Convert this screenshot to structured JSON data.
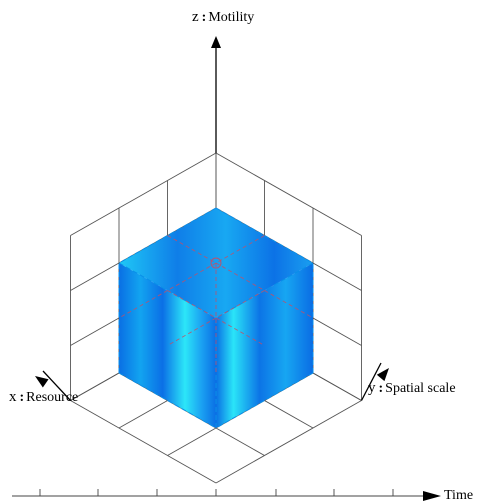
{
  "axes": {
    "z": {
      "var": "z",
      "name": "Motility"
    },
    "x": {
      "var": "x",
      "name": "Resource"
    },
    "y": {
      "var": "y",
      "name": "Spatial scale"
    },
    "time": {
      "name": "Time"
    }
  },
  "colors": {
    "grid": "#555555",
    "cube_edge": "#0a8fe8",
    "cube_light": "#2ce6f8",
    "cube_mid": "#1aa8f2",
    "cube_dark": "#0a6fe4",
    "hidden_edge": "#c0506a",
    "axis": "#000000"
  },
  "icons": {
    "arrow": "arrowhead"
  }
}
